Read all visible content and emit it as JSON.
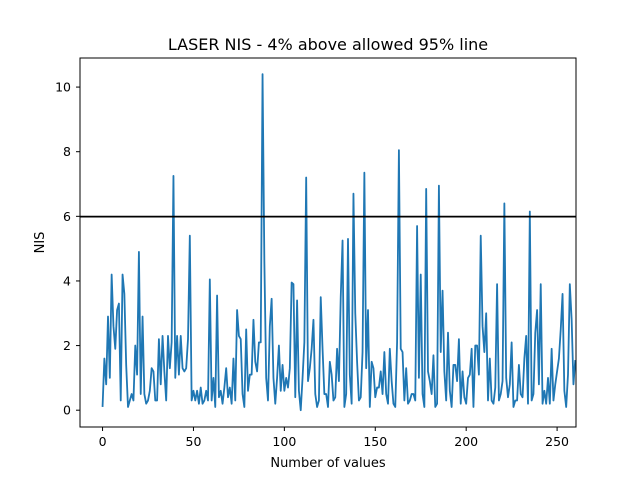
{
  "chart_data": {
    "type": "line",
    "title": "LASER NIS - 4% above allowed 95% line",
    "xlabel": "Number of values",
    "ylabel": "NIS",
    "xlim": [
      -12.4,
      260.4
    ],
    "ylim": [
      -0.52,
      10.9
    ],
    "xticks": [
      0,
      50,
      100,
      150,
      200,
      250
    ],
    "yticks": [
      0,
      2,
      4,
      6,
      8,
      10
    ],
    "grid": false,
    "series_color": "#1f77b4",
    "threshold": {
      "value": 5.99,
      "color": "#000000"
    },
    "series": [
      {
        "values": [
          0.1,
          1.6,
          0.8,
          2.9,
          1.0,
          4.2,
          2.6,
          1.9,
          3.1,
          3.3,
          0.3,
          4.2,
          3.6,
          1.4,
          0.1,
          0.3,
          0.5,
          0.3,
          2.0,
          1.1,
          4.9,
          0.5,
          2.9,
          0.5,
          0.2,
          0.3,
          0.6,
          1.3,
          1.2,
          0.3,
          0.3,
          2.2,
          0.8,
          2.3,
          1.2,
          0.3,
          2.3,
          1.3,
          2.1,
          7.25,
          1.0,
          2.3,
          1.1,
          2.3,
          1.3,
          1.2,
          1.3,
          2.2,
          5.4,
          0.3,
          0.6,
          0.3,
          0.6,
          0.2,
          0.7,
          0.2,
          0.3,
          0.6,
          0.3,
          4.05,
          0.3,
          1.0,
          0.1,
          3.55,
          0.4,
          0.6,
          0.2,
          0.7,
          1.3,
          0.4,
          0.7,
          0.2,
          1.6,
          0.3,
          3.1,
          2.3,
          2.2,
          0.5,
          0.1,
          2.5,
          0.6,
          1.1,
          1.1,
          2.8,
          1.5,
          1.2,
          2.1,
          2.1,
          10.4,
          4.6,
          1.0,
          0.3,
          2.6,
          3.45,
          1.0,
          0.2,
          1.0,
          2.0,
          0.6,
          1.4,
          0.6,
          1.0,
          0.7,
          1.3,
          3.95,
          3.9,
          0.4,
          3.4,
          0.6,
          0.0,
          1.0,
          2.1,
          7.2,
          0.9,
          1.3,
          1.9,
          2.8,
          0.5,
          0.1,
          0.3,
          3.5,
          1.9,
          0.5,
          0.5,
          0.1,
          1.5,
          1.1,
          0.3,
          0.4,
          1.9,
          0.9,
          3.5,
          5.25,
          0.1,
          0.5,
          5.3,
          1.1,
          0.2,
          6.7,
          3.0,
          1.5,
          0.3,
          0.4,
          1.8,
          7.35,
          1.3,
          3.1,
          0.1,
          1.5,
          1.3,
          0.4,
          0.7,
          0.7,
          1.2,
          0.5,
          1.8,
          0.5,
          0.2,
          1.9,
          0.9,
          0.2,
          0.1,
          2.1,
          8.05,
          1.9,
          1.8,
          0.3,
          1.3,
          0.2,
          0.3,
          0.5,
          0.5,
          0.3,
          5.7,
          1.0,
          4.2,
          0.5,
          0.1,
          6.85,
          1.2,
          0.9,
          0.5,
          1.7,
          0.1,
          0.2,
          6.95,
          1.8,
          3.7,
          1.2,
          0.3,
          2.4,
          0.6,
          0.1,
          1.4,
          1.4,
          0.9,
          2.2,
          0.2,
          1.2,
          0.4,
          0.2,
          1.0,
          1.1,
          1.9,
          0.1,
          2.0,
          2.0,
          1.1,
          5.4,
          2.6,
          1.8,
          3.0,
          0.3,
          1.6,
          0.3,
          0.2,
          0.7,
          3.9,
          0.3,
          0.5,
          0.9,
          6.4,
          1.0,
          0.4,
          0.8,
          2.1,
          0.1,
          0.3,
          0.3,
          1.4,
          0.5,
          0.4,
          1.6,
          2.3,
          0.2,
          6.15,
          0.3,
          0.5,
          2.4,
          3.1,
          0.8,
          3.9,
          0.2,
          0.6,
          0.2,
          1.0,
          0.2,
          1.9,
          0.3,
          0.8,
          1.2,
          1.6,
          2.5,
          3.6,
          0.6,
          0.1,
          1.1,
          3.9,
          2.8,
          0.8,
          1.55
        ]
      }
    ]
  }
}
